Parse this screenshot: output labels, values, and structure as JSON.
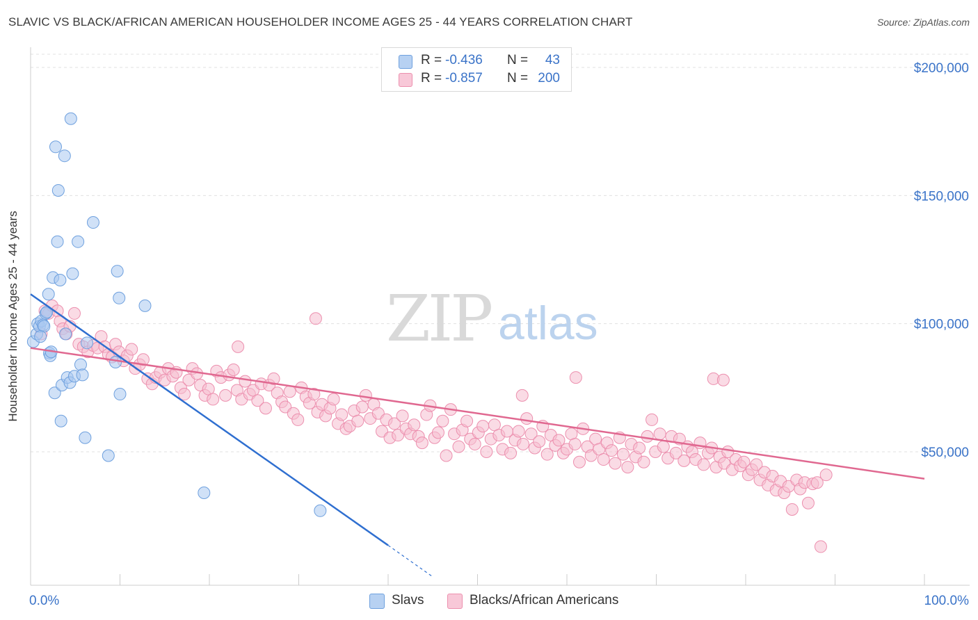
{
  "header": {
    "title": "SLAVIC VS BLACK/AFRICAN AMERICAN HOUSEHOLDER INCOME AGES 25 - 44 YEARS CORRELATION CHART",
    "source": "Source: ZipAtlas.com"
  },
  "legend": {
    "rows": [
      {
        "r_label": "R =",
        "r_value": "-0.436",
        "n_label": "N =",
        "n_value": "43"
      },
      {
        "r_label": "R =",
        "r_value": "-0.857",
        "n_label": "N =",
        "n_value": "200"
      }
    ]
  },
  "bottom_legend": {
    "slavs": "Slavs",
    "black": "Blacks/African Americans"
  },
  "watermark": {
    "zip": "ZIP",
    "atlas": "atlas"
  },
  "colors": {
    "slavs_fill": "#a9c8f0",
    "slavs_stroke": "#6ea0de",
    "slavs_line": "#2f6fd0",
    "black_fill": "#f6bdd0",
    "black_stroke": "#ec8fae",
    "black_line": "#e06890",
    "axis_text": "#3a73c8",
    "grid": "#e0e0e0"
  },
  "chart_data": {
    "type": "scatter",
    "title": "SLAVIC VS BLACK/AFRICAN AMERICAN HOUSEHOLDER INCOME AGES 25 - 44 YEARS CORRELATION CHART",
    "xlabel": "",
    "ylabel": "Householder Income Ages 25 - 44 years",
    "xlim": [
      0,
      100
    ],
    "ylim": [
      0,
      210000
    ],
    "x_tick_labels": [
      "0.0%",
      "100.0%"
    ],
    "y_ticks": [
      50000,
      100000,
      150000,
      200000
    ],
    "y_tick_labels": [
      "$50,000",
      "$100,000",
      "$150,000",
      "$200,000"
    ],
    "grid": true,
    "legend_position": "top-center",
    "series": [
      {
        "name": "Slavs",
        "r": -0.436,
        "n": 43,
        "trend": {
          "x": [
            0,
            40
          ],
          "y": [
            111500,
            13500
          ],
          "dashed_to": [
            45,
            1200
          ]
        },
        "points": [
          [
            0.3,
            93000
          ],
          [
            0.7,
            96000
          ],
          [
            0.8,
            100000
          ],
          [
            1.0,
            99000
          ],
          [
            1.2,
            101000
          ],
          [
            1.4,
            99500
          ],
          [
            1.7,
            104000
          ],
          [
            1.8,
            104500
          ],
          [
            2.0,
            111500
          ],
          [
            2.1,
            88500
          ],
          [
            2.2,
            87500
          ],
          [
            2.3,
            89000
          ],
          [
            2.5,
            118000
          ],
          [
            2.7,
            73000
          ],
          [
            2.8,
            169000
          ],
          [
            3.0,
            132000
          ],
          [
            3.1,
            152000
          ],
          [
            3.3,
            117000
          ],
          [
            3.4,
            62000
          ],
          [
            3.5,
            76000
          ],
          [
            3.8,
            165500
          ],
          [
            3.9,
            96000
          ],
          [
            4.1,
            79000
          ],
          [
            4.4,
            77000
          ],
          [
            4.5,
            180000
          ],
          [
            4.7,
            119500
          ],
          [
            4.9,
            79500
          ],
          [
            5.3,
            132000
          ],
          [
            5.6,
            84000
          ],
          [
            5.8,
            80000
          ],
          [
            6.1,
            55500
          ],
          [
            6.3,
            92500
          ],
          [
            7.0,
            139500
          ],
          [
            8.7,
            48500
          ],
          [
            9.5,
            85000
          ],
          [
            9.7,
            120500
          ],
          [
            9.9,
            110000
          ],
          [
            10.0,
            72500
          ],
          [
            12.8,
            107000
          ],
          [
            19.4,
            34000
          ],
          [
            32.4,
            27000
          ],
          [
            1.5,
            99000
          ],
          [
            1.1,
            95000
          ]
        ]
      },
      {
        "name": "Blacks/African Americans",
        "r": -0.857,
        "n": 200,
        "trend": {
          "x": [
            0,
            100
          ],
          "y": [
            90500,
            39500
          ]
        },
        "points": [
          [
            1.2,
            96000
          ],
          [
            1.6,
            105000
          ],
          [
            2.0,
            104000
          ],
          [
            2.4,
            107000
          ],
          [
            3.0,
            105000
          ],
          [
            3.3,
            101000
          ],
          [
            3.6,
            98000
          ],
          [
            4.0,
            96000
          ],
          [
            4.4,
            99000
          ],
          [
            4.9,
            104000
          ],
          [
            5.4,
            92000
          ],
          [
            5.9,
            91000
          ],
          [
            6.4,
            89000
          ],
          [
            7.0,
            91500
          ],
          [
            7.5,
            90500
          ],
          [
            7.9,
            95000
          ],
          [
            8.3,
            91000
          ],
          [
            8.7,
            88000
          ],
          [
            9.1,
            87000
          ],
          [
            9.5,
            92000
          ],
          [
            9.9,
            89000
          ],
          [
            10.4,
            85500
          ],
          [
            10.8,
            87500
          ],
          [
            11.3,
            90000
          ],
          [
            11.7,
            82500
          ],
          [
            12.2,
            84000
          ],
          [
            12.6,
            86000
          ],
          [
            13.1,
            78500
          ],
          [
            13.6,
            76500
          ],
          [
            14.0,
            79000
          ],
          [
            14.5,
            81000
          ],
          [
            15.0,
            78000
          ],
          [
            15.4,
            82500
          ],
          [
            15.9,
            79500
          ],
          [
            16.3,
            81000
          ],
          [
            16.8,
            75000
          ],
          [
            17.2,
            72500
          ],
          [
            17.7,
            78000
          ],
          [
            18.1,
            82500
          ],
          [
            18.6,
            80500
          ],
          [
            19.0,
            76000
          ],
          [
            19.5,
            72000
          ],
          [
            19.9,
            74500
          ],
          [
            20.4,
            70500
          ],
          [
            20.8,
            81500
          ],
          [
            21.3,
            79000
          ],
          [
            21.8,
            72000
          ],
          [
            22.2,
            80000
          ],
          [
            22.7,
            82000
          ],
          [
            23.1,
            74000
          ],
          [
            23.6,
            70500
          ],
          [
            24.0,
            77500
          ],
          [
            24.5,
            72500
          ],
          [
            24.9,
            74000
          ],
          [
            25.4,
            70000
          ],
          [
            25.8,
            76500
          ],
          [
            26.3,
            67000
          ],
          [
            26.7,
            76000
          ],
          [
            27.2,
            78500
          ],
          [
            27.6,
            73000
          ],
          [
            28.1,
            69500
          ],
          [
            28.5,
            67500
          ],
          [
            29.0,
            73500
          ],
          [
            29.4,
            65000
          ],
          [
            29.9,
            62500
          ],
          [
            30.3,
            75000
          ],
          [
            30.8,
            71500
          ],
          [
            31.2,
            69000
          ],
          [
            31.7,
            72500
          ],
          [
            32.1,
            65500
          ],
          [
            32.6,
            68500
          ],
          [
            33.0,
            64000
          ],
          [
            33.5,
            67000
          ],
          [
            33.9,
            70500
          ],
          [
            34.4,
            61000
          ],
          [
            34.8,
            64500
          ],
          [
            35.3,
            59000
          ],
          [
            35.7,
            60000
          ],
          [
            36.2,
            66000
          ],
          [
            36.6,
            62000
          ],
          [
            37.1,
            67500
          ],
          [
            37.5,
            72000
          ],
          [
            38.0,
            63000
          ],
          [
            38.4,
            68500
          ],
          [
            38.9,
            65000
          ],
          [
            39.3,
            58000
          ],
          [
            39.8,
            62500
          ],
          [
            40.2,
            55500
          ],
          [
            40.7,
            61000
          ],
          [
            41.1,
            56500
          ],
          [
            41.6,
            64000
          ],
          [
            42.0,
            59000
          ],
          [
            42.5,
            57000
          ],
          [
            42.9,
            60500
          ],
          [
            43.4,
            56000
          ],
          [
            43.8,
            53500
          ],
          [
            44.3,
            64500
          ],
          [
            44.7,
            68000
          ],
          [
            45.2,
            55500
          ],
          [
            45.6,
            57500
          ],
          [
            46.1,
            62000
          ],
          [
            46.5,
            48500
          ],
          [
            47.0,
            66500
          ],
          [
            47.4,
            57000
          ],
          [
            47.9,
            52000
          ],
          [
            48.3,
            58500
          ],
          [
            48.8,
            62000
          ],
          [
            49.2,
            55000
          ],
          [
            49.7,
            53000
          ],
          [
            50.1,
            57500
          ],
          [
            50.6,
            60000
          ],
          [
            51.0,
            50000
          ],
          [
            51.5,
            55000
          ],
          [
            51.9,
            60500
          ],
          [
            52.4,
            56500
          ],
          [
            52.8,
            51000
          ],
          [
            53.3,
            58000
          ],
          [
            53.7,
            49500
          ],
          [
            54.2,
            54500
          ],
          [
            54.6,
            58000
          ],
          [
            55.1,
            53000
          ],
          [
            55.5,
            63000
          ],
          [
            56.0,
            57000
          ],
          [
            56.4,
            51500
          ],
          [
            56.9,
            54000
          ],
          [
            57.3,
            60000
          ],
          [
            57.8,
            49000
          ],
          [
            58.2,
            56500
          ],
          [
            58.7,
            52500
          ],
          [
            59.1,
            54500
          ],
          [
            59.6,
            49500
          ],
          [
            60.0,
            51000
          ],
          [
            60.5,
            57000
          ],
          [
            60.9,
            53000
          ],
          [
            61.4,
            46000
          ],
          [
            61.8,
            59000
          ],
          [
            62.3,
            52000
          ],
          [
            62.7,
            48500
          ],
          [
            63.2,
            55000
          ],
          [
            63.6,
            51000
          ],
          [
            64.1,
            47000
          ],
          [
            64.5,
            53500
          ],
          [
            65.0,
            50500
          ],
          [
            65.4,
            45500
          ],
          [
            65.9,
            55500
          ],
          [
            66.3,
            49000
          ],
          [
            66.8,
            44000
          ],
          [
            67.2,
            53000
          ],
          [
            67.7,
            48000
          ],
          [
            68.1,
            51500
          ],
          [
            68.6,
            46000
          ],
          [
            69.0,
            56000
          ],
          [
            69.5,
            62500
          ],
          [
            69.9,
            50000
          ],
          [
            70.4,
            57000
          ],
          [
            70.8,
            52000
          ],
          [
            71.3,
            47500
          ],
          [
            71.7,
            56000
          ],
          [
            72.2,
            49500
          ],
          [
            72.6,
            55000
          ],
          [
            73.1,
            46500
          ],
          [
            73.5,
            52000
          ],
          [
            74.0,
            50000
          ],
          [
            74.4,
            47000
          ],
          [
            74.9,
            53500
          ],
          [
            75.3,
            45000
          ],
          [
            75.8,
            49500
          ],
          [
            76.2,
            51500
          ],
          [
            76.7,
            44000
          ],
          [
            77.1,
            48000
          ],
          [
            77.6,
            45500
          ],
          [
            78.0,
            50000
          ],
          [
            78.5,
            43000
          ],
          [
            78.9,
            47000
          ],
          [
            79.4,
            44500
          ],
          [
            79.8,
            46000
          ],
          [
            80.3,
            41000
          ],
          [
            80.7,
            43000
          ],
          [
            81.2,
            45000
          ],
          [
            81.6,
            39000
          ],
          [
            82.1,
            42000
          ],
          [
            82.5,
            37000
          ],
          [
            83.0,
            40500
          ],
          [
            83.4,
            35000
          ],
          [
            83.9,
            38500
          ],
          [
            84.3,
            34000
          ],
          [
            84.8,
            36500
          ],
          [
            85.2,
            27500
          ],
          [
            85.7,
            39000
          ],
          [
            86.1,
            35500
          ],
          [
            86.6,
            38000
          ],
          [
            87.0,
            30000
          ],
          [
            87.5,
            37500
          ],
          [
            88.0,
            38000
          ],
          [
            88.4,
            13000
          ],
          [
            89.0,
            41000
          ],
          [
            31.9,
            102000
          ],
          [
            23.2,
            91000
          ],
          [
            76.4,
            78500
          ],
          [
            77.5,
            78000
          ],
          [
            61.0,
            79000
          ],
          [
            55.0,
            72000
          ]
        ]
      }
    ]
  }
}
